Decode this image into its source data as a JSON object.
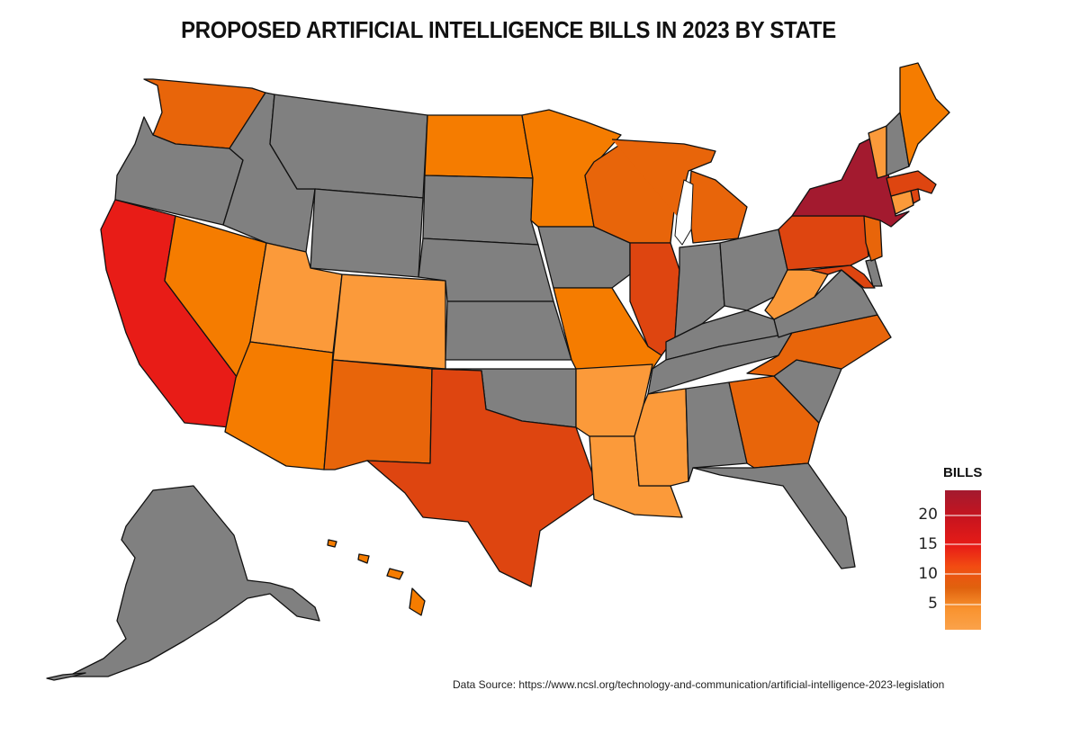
{
  "title": "PROPOSED ARTIFICIAL INTELLIGENCE BILLS IN 2023 BY STATE",
  "source": "Data Source: https://www.ncsl.org/technology-and-communication/artificial-intelligence-2023-legislation",
  "legend": {
    "title": "BILLS",
    "ticks": [
      "20",
      "15",
      "10",
      "5"
    ],
    "tick_values": [
      20,
      15,
      10,
      5
    ],
    "color_stops": [
      "#a31a2f",
      "#c8141e",
      "#e81c17",
      "#f24d12",
      "#e0620e",
      "#f47a0f",
      "#f9932f",
      "#fba24a"
    ]
  },
  "colors": {
    "no_bills": "#808080",
    "level_1": "#fb9a3a",
    "level_2": "#f57c00",
    "level_3": "#e8650a",
    "level_4": "#de4510",
    "level_5": "#e81c17",
    "level_6": "#a31a2f"
  },
  "states": {
    "WA": "level_3",
    "OR": "none",
    "CA": "level_5",
    "NV": "level_2",
    "ID": "none",
    "MT": "none",
    "WY": "none",
    "UT": "level_1",
    "CO": "level_1",
    "AZ": "level_2",
    "NM": "level_3",
    "ND": "level_2",
    "SD": "none",
    "NE": "none",
    "KS": "none",
    "OK": "none",
    "TX": "level_4",
    "MN": "level_2",
    "IA": "none",
    "MO": "level_2",
    "AR": "level_1",
    "LA": "level_1",
    "WI": "level_3",
    "IL": "level_4",
    "MI": "level_3",
    "IN": "none",
    "OH": "none",
    "KY": "none",
    "TN": "none",
    "MS": "level_1",
    "AL": "none",
    "GA": "level_3",
    "FL": "none",
    "SC": "none",
    "NC": "level_3",
    "VA": "none",
    "WV": "level_1",
    "PA": "level_4",
    "NY": "level_6",
    "NJ": "level_3",
    "MD": "level_4",
    "DE": "none",
    "CT": "level_1",
    "RI": "level_4",
    "MA": "level_4",
    "VT": "level_1",
    "NH": "none",
    "ME": "level_2",
    "AK": "none",
    "HI": "level_2"
  }
}
